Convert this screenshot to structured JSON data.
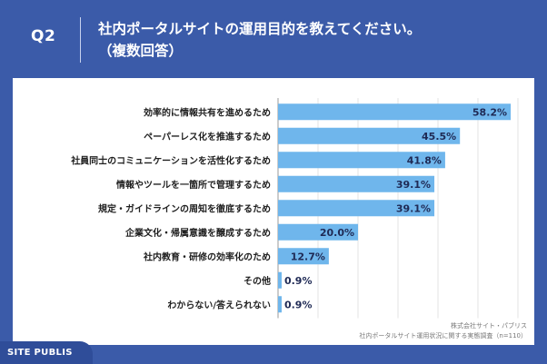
{
  "header": {
    "question_no": "Q2",
    "title_line1": "社内ポータルサイトの運用目的を教えてください。",
    "title_line2": "（複数回答）"
  },
  "source": {
    "line1": "株式会社サイト・パブリス",
    "line2": "社内ポータルサイト運用状況に関する実態調査（n=110）"
  },
  "brand": "SITE PUBLIS",
  "colors": {
    "bar": "#6fb6ec",
    "background": "#3b5ba9",
    "panel": "#ffffff"
  },
  "chart_data": {
    "type": "bar",
    "orientation": "horizontal",
    "categories": [
      "効率的に情報共有を進めるため",
      "ペーパーレス化を推進するため",
      "社員同士のコミュニケーションを活性化するため",
      "情報やツールを一箇所で管理するため",
      "規定・ガイドラインの周知を徹底するため",
      "企業文化・帰属意識を醸成するため",
      "社内教育・研修の効率化のため",
      "その他",
      "わからない/答えられない"
    ],
    "values": [
      58.2,
      45.5,
      41.8,
      39.1,
      39.1,
      20.0,
      12.7,
      0.9,
      0.9
    ],
    "value_labels": [
      "58.2%",
      "45.5%",
      "41.8%",
      "39.1%",
      "39.1%",
      "20.0%",
      "12.7%",
      "0.9%",
      "0.9%"
    ],
    "xlim": [
      0,
      60
    ],
    "unit": "%",
    "grid": true
  }
}
